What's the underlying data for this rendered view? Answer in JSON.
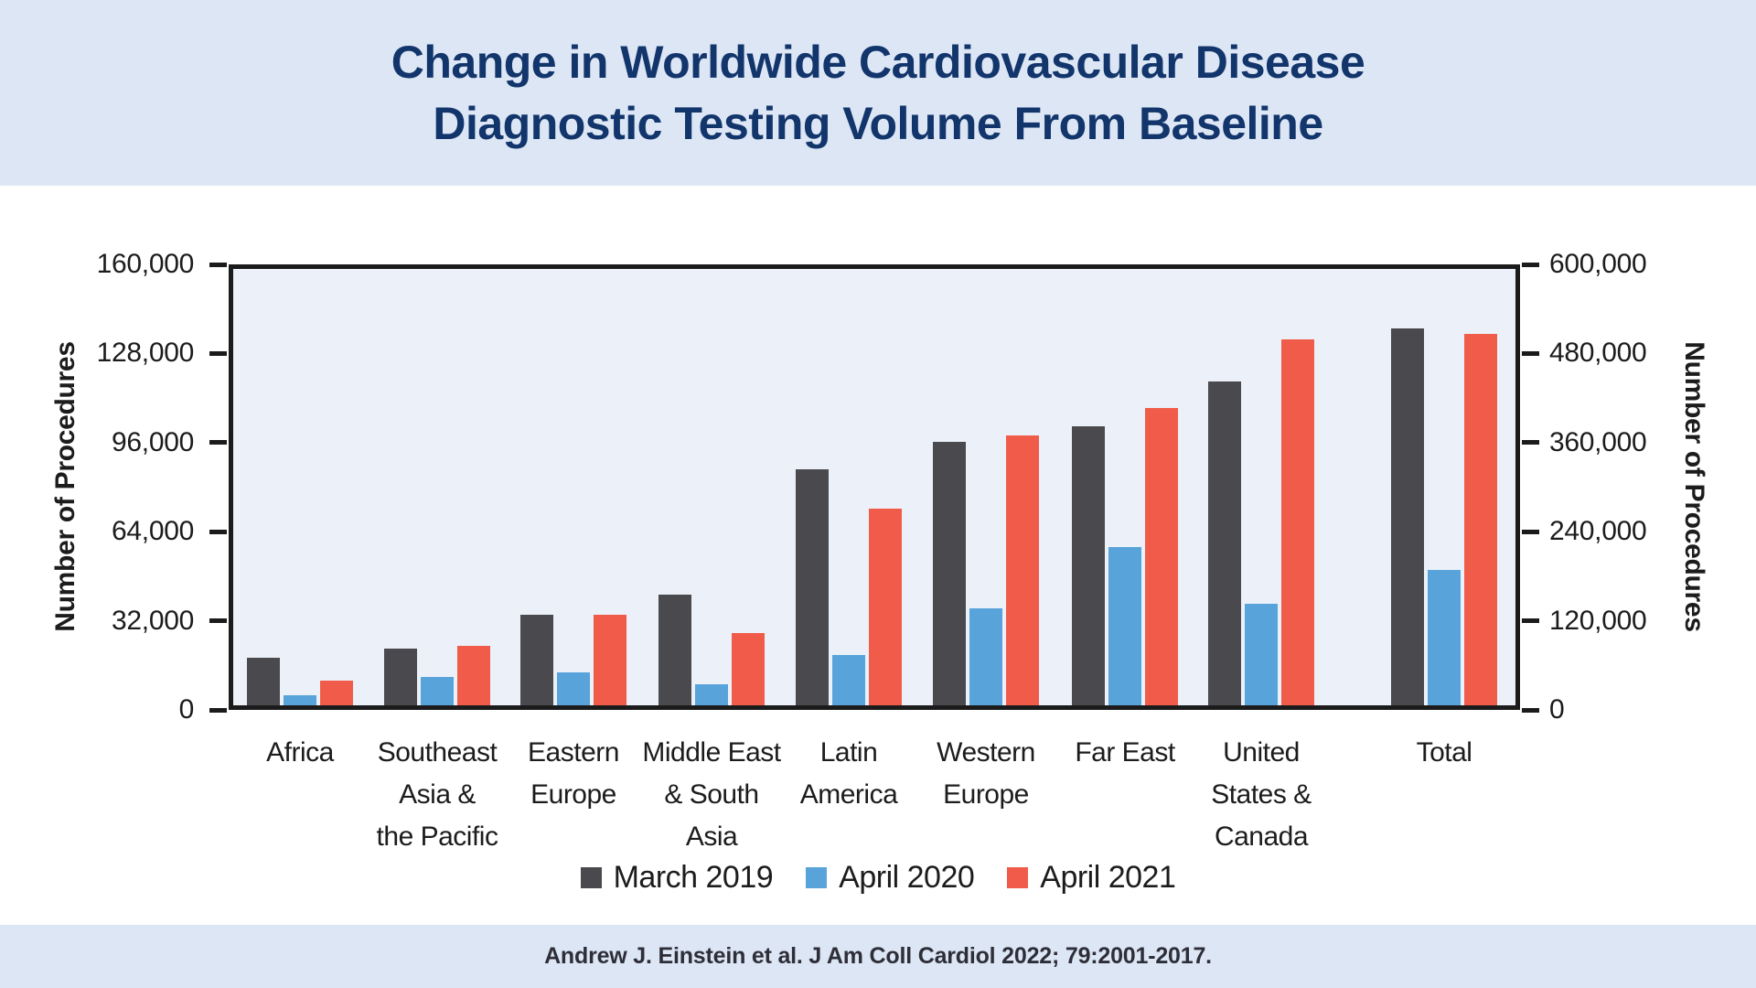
{
  "header": {
    "title_line1": "Change in Worldwide Cardiovascular Disease",
    "title_line2": "Diagnostic Testing Volume From Baseline"
  },
  "footer": {
    "citation": "Andrew J. Einstein et al. J Am Coll Cardiol 2022; 79:2001-2017."
  },
  "colors": {
    "band_blue": "#dce6f5",
    "title_navy": "#12356b",
    "plot_background": "#ecf1f9",
    "axis_black": "#1b1b1b",
    "series_march_2019": "#4a4a4e",
    "series_april_2020": "#58a3d9",
    "series_april_2021": "#f15c4a"
  },
  "chart_data": {
    "type": "bar",
    "title": "Change in Worldwide Cardiovascular Disease Diagnostic Testing Volume From Baseline",
    "grid": false,
    "legend_position": "bottom",
    "left_axis": {
      "label": "Number of Procedures",
      "max": 160000,
      "tick_values": [
        0,
        32000,
        64000,
        96000,
        128000,
        160000
      ],
      "tick_labels": [
        "0",
        "32,000",
        "64,000",
        "96,000",
        "128,000",
        "160,000"
      ]
    },
    "right_axis": {
      "label": "Number of Procedures",
      "max": 600000,
      "tick_values": [
        0,
        120000,
        240000,
        360000,
        480000,
        600000
      ],
      "tick_labels": [
        "0",
        "120,000",
        "240,000",
        "360,000",
        "480,000",
        "600,000"
      ]
    },
    "series": [
      {
        "name": "March 2019",
        "color": "#4a4a4e"
      },
      {
        "name": "April 2020",
        "color": "#58a3d9"
      },
      {
        "name": "April 2021",
        "color": "#f15c4a"
      }
    ],
    "categories": [
      {
        "label": "Africa",
        "lines": [
          "Africa"
        ],
        "axis": "left",
        "values": [
          17200,
          3600,
          8800
        ]
      },
      {
        "label": "Southeast Asia & the Pacific",
        "lines": [
          "Southeast",
          "Asia &",
          "the Pacific"
        ],
        "axis": "left",
        "values": [
          20500,
          10200,
          21300
        ]
      },
      {
        "label": "Eastern Europe",
        "lines": [
          "Eastern",
          "Europe"
        ],
        "axis": "left",
        "values": [
          32600,
          11700,
          32600
        ]
      },
      {
        "label": "Middle East & South Asia",
        "lines": [
          "Middle East",
          "& South",
          "Asia"
        ],
        "axis": "left",
        "values": [
          39800,
          7500,
          25800
        ]
      },
      {
        "label": "Latin America",
        "lines": [
          "Latin",
          "America"
        ],
        "axis": "left",
        "values": [
          84700,
          18100,
          70600
        ]
      },
      {
        "label": "Western Europe",
        "lines": [
          "Western",
          "Europe"
        ],
        "axis": "left",
        "values": [
          94700,
          34700,
          96900
        ]
      },
      {
        "label": "Far East",
        "lines": [
          "Far East"
        ],
        "axis": "left",
        "values": [
          100200,
          56700,
          106800
        ]
      },
      {
        "label": "United States & Canada",
        "lines": [
          "United",
          "States &",
          "Canada"
        ],
        "axis": "left",
        "values": [
          116400,
          36500,
          131300
        ]
      },
      {
        "label": "Total",
        "lines": [
          "Total"
        ],
        "axis": "right",
        "values": [
          508000,
          182000,
          500000
        ]
      }
    ]
  }
}
